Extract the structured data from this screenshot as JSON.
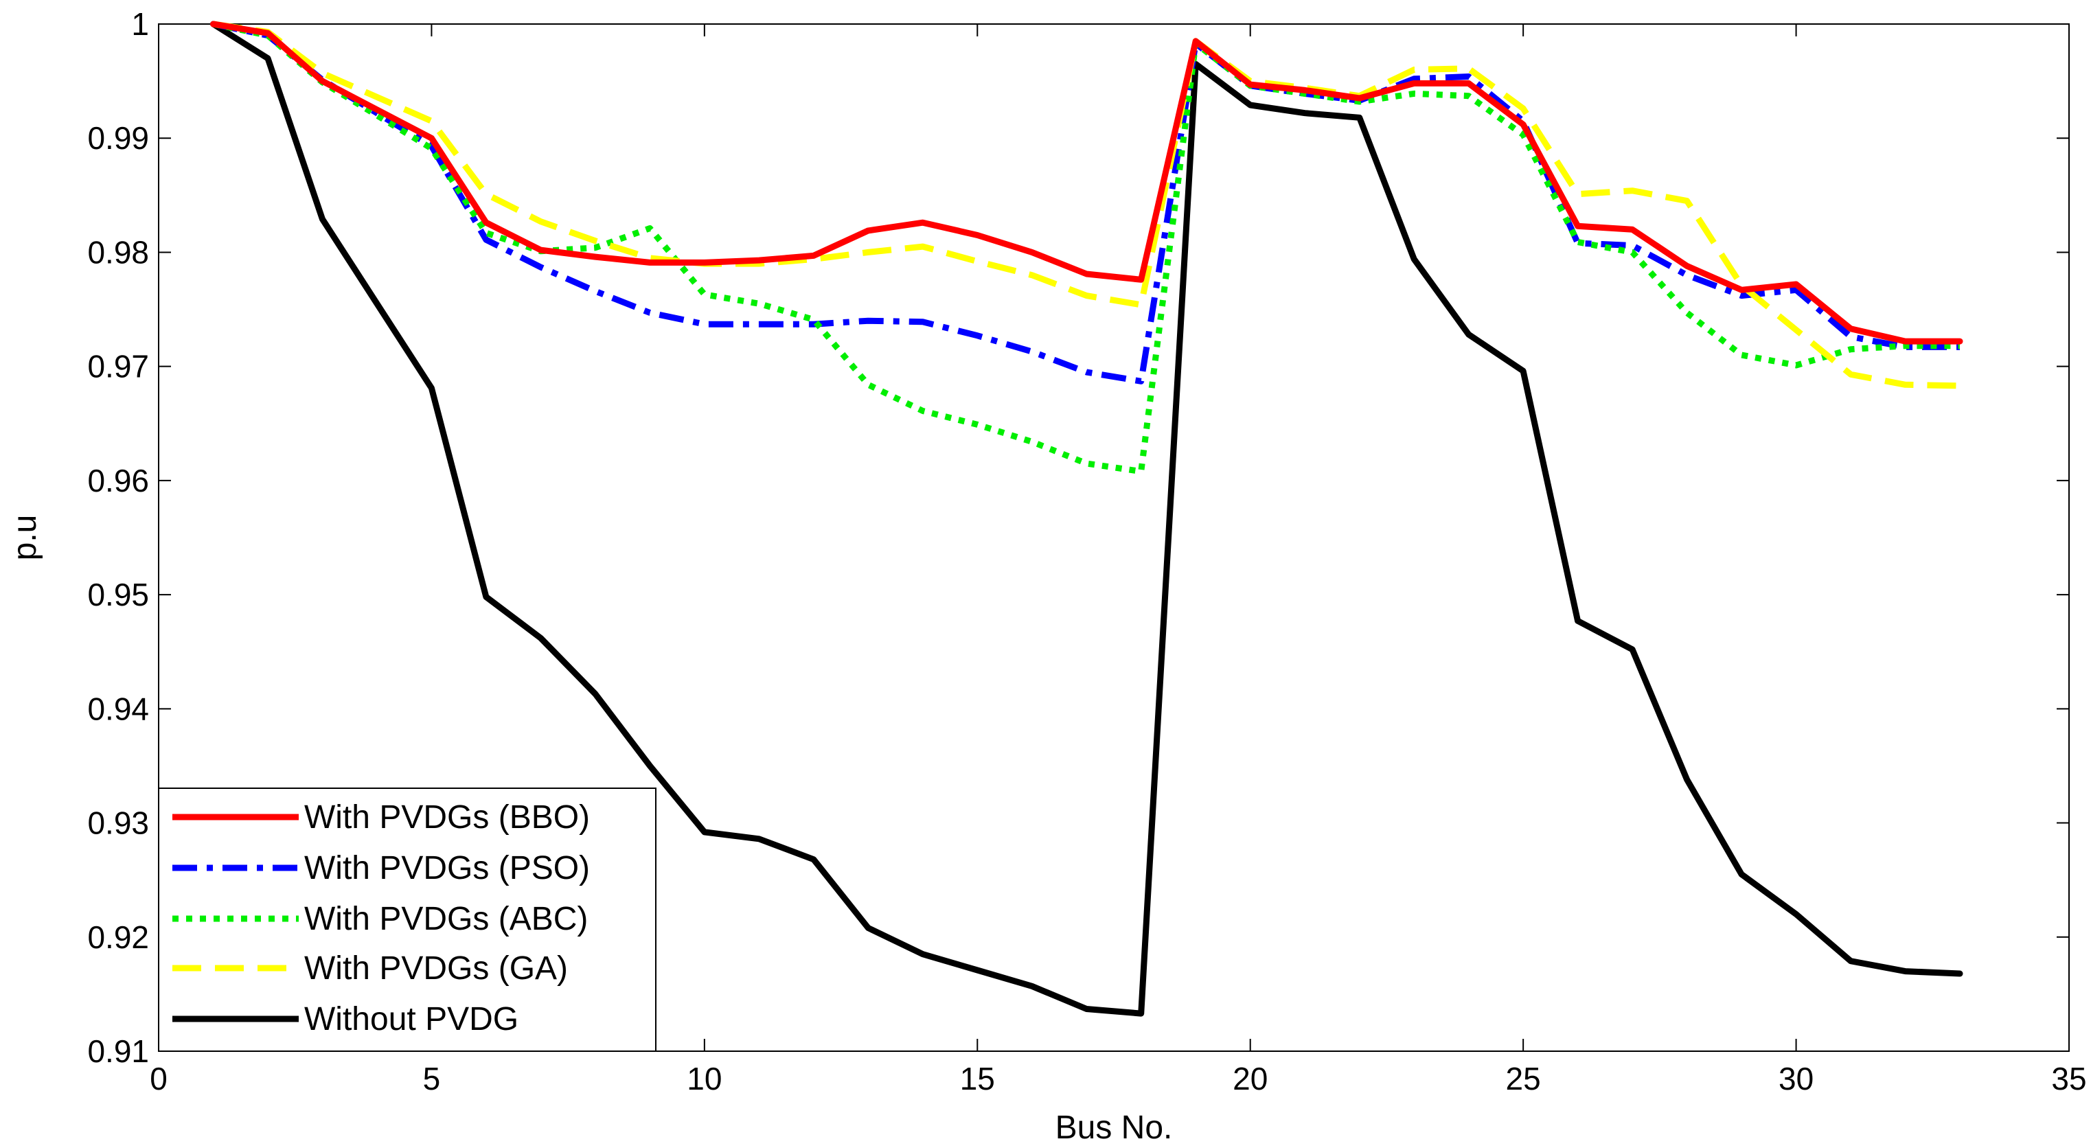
{
  "chart_data": {
    "type": "line",
    "title": "",
    "xlabel": "Bus No.",
    "ylabel": "p.u",
    "xlim": [
      0,
      35
    ],
    "ylim": [
      0.91,
      1
    ],
    "xticks": [
      0,
      5,
      10,
      15,
      20,
      25,
      30,
      35
    ],
    "yticks": [
      0.91,
      0.92,
      0.93,
      0.94,
      0.95,
      0.96,
      0.97,
      0.98,
      0.99,
      1
    ],
    "xtick_labels": [
      "0",
      "5",
      "10",
      "15",
      "20",
      "25",
      "30",
      "35"
    ],
    "ytick_labels": [
      "0.91",
      "0.92",
      "0.93",
      "0.94",
      "0.95",
      "0.96",
      "0.97",
      "0.98",
      "0.99",
      "1"
    ],
    "grid": false,
    "legend_position": "bottom-left",
    "x": [
      1,
      2,
      3,
      4,
      5,
      6,
      7,
      8,
      9,
      10,
      11,
      12,
      13,
      14,
      15,
      16,
      17,
      18,
      19,
      20,
      21,
      22,
      23,
      24,
      25,
      26,
      27,
      28,
      29,
      30,
      31,
      32,
      33
    ],
    "series": [
      {
        "name": "With PVDGs (BBO)",
        "color": "#ff0000",
        "style": "solid",
        "values": [
          1.0,
          0.9992,
          0.995,
          0.9925,
          0.99,
          0.9826,
          0.9802,
          0.9796,
          0.9791,
          0.9791,
          0.9793,
          0.9797,
          0.9819,
          0.9826,
          0.9815,
          0.98,
          0.9781,
          0.9776,
          0.9985,
          0.9947,
          0.9942,
          0.9935,
          0.9948,
          0.9948,
          0.9912,
          0.9823,
          0.982,
          0.9788,
          0.9767,
          0.9772,
          0.9733,
          0.9722,
          0.9722
        ]
      },
      {
        "name": "With PVDGs (PSO)",
        "color": "#0000ff",
        "style": "dashdot",
        "values": [
          1.0,
          0.999,
          0.9951,
          0.9922,
          0.9893,
          0.9811,
          0.9787,
          0.9766,
          0.9747,
          0.9737,
          0.9737,
          0.9737,
          0.974,
          0.9739,
          0.9727,
          0.9713,
          0.9695,
          0.9687,
          0.9983,
          0.9946,
          0.9939,
          0.9933,
          0.9952,
          0.9954,
          0.9915,
          0.9808,
          0.9806,
          0.978,
          0.9762,
          0.9767,
          0.9726,
          0.9717,
          0.9717
        ]
      },
      {
        "name": "With PVDGs (ABC)",
        "color": "#00ee00",
        "style": "dotted",
        "values": [
          1.0,
          0.999,
          0.9949,
          0.992,
          0.9891,
          0.9817,
          0.9801,
          0.9804,
          0.9821,
          0.9763,
          0.9755,
          0.9741,
          0.9684,
          0.9661,
          0.9649,
          0.9634,
          0.9615,
          0.9608,
          0.9983,
          0.9946,
          0.9939,
          0.9932,
          0.9939,
          0.9937,
          0.9903,
          0.9809,
          0.98,
          0.9747,
          0.971,
          0.9701,
          0.9715,
          0.9718,
          0.9718
        ]
      },
      {
        "name": "With PVDGs (GA)",
        "color": "#ffff00",
        "style": "dashed",
        "values": [
          1.0,
          0.9993,
          0.9957,
          0.9936,
          0.9915,
          0.9851,
          0.9827,
          0.981,
          0.9795,
          0.979,
          0.979,
          0.9794,
          0.98,
          0.9805,
          0.9792,
          0.978,
          0.9762,
          0.9754,
          0.9985,
          0.995,
          0.9944,
          0.9937,
          0.996,
          0.9961,
          0.9926,
          0.9851,
          0.9854,
          0.9845,
          0.9771,
          0.9732,
          0.9693,
          0.9684,
          0.9683
        ]
      },
      {
        "name": "Without PVDG",
        "color": "#000000",
        "style": "solid",
        "values": [
          1.0,
          0.997,
          0.9829,
          0.9755,
          0.9681,
          0.9498,
          0.9462,
          0.9413,
          0.935,
          0.9292,
          0.9286,
          0.9268,
          0.9208,
          0.9185,
          0.9171,
          0.9157,
          0.9137,
          0.9133,
          0.9965,
          0.9929,
          0.9922,
          0.9918,
          0.9794,
          0.9728,
          0.9696,
          0.9477,
          0.9452,
          0.9338,
          0.9255,
          0.922,
          0.9179,
          0.917,
          0.9168
        ]
      }
    ]
  }
}
